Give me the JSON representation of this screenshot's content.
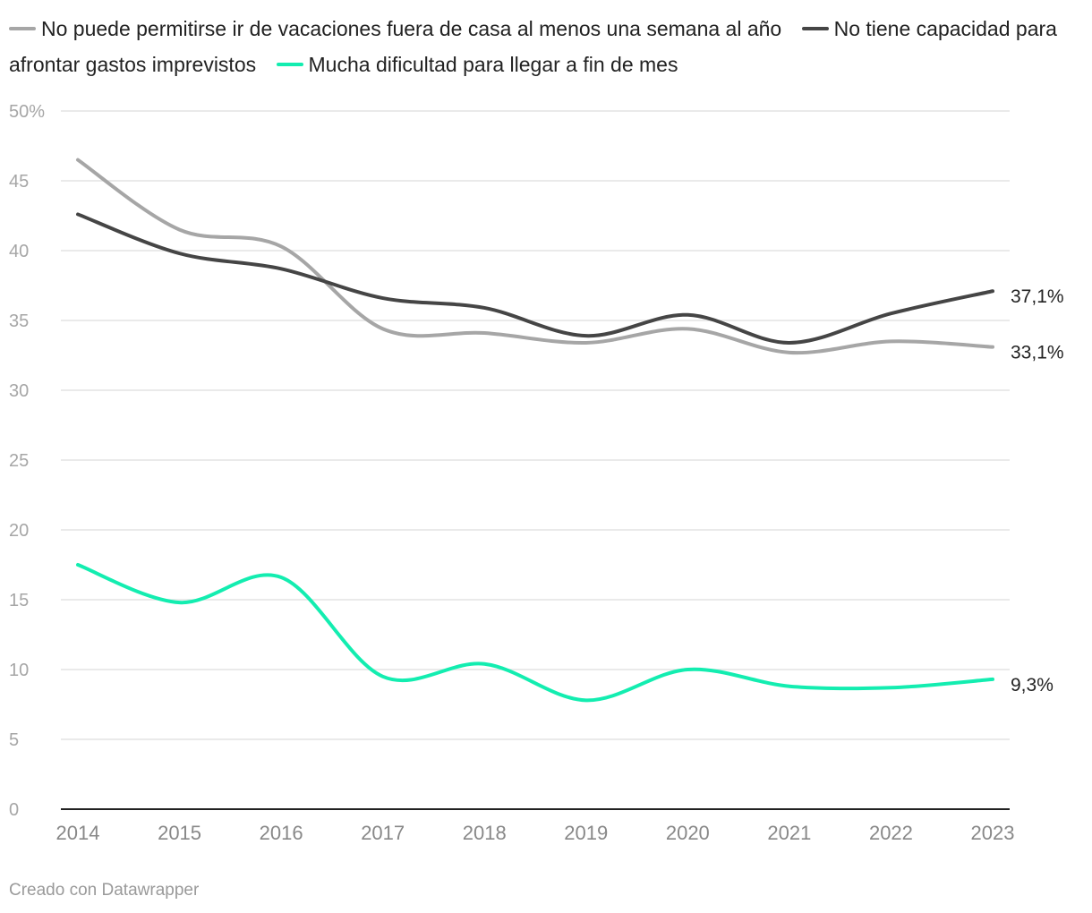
{
  "chart_data": {
    "type": "line",
    "x": [
      "2014",
      "2015",
      "2016",
      "2017",
      "2018",
      "2019",
      "2020",
      "2021",
      "2022",
      "2023"
    ],
    "series": [
      {
        "name": "No puede permitirse ir de vacaciones fuera de casa al menos una semana al año",
        "color": "#a6a6a6",
        "values": [
          46.5,
          41.5,
          40.3,
          34.4,
          34.1,
          33.4,
          34.4,
          32.7,
          33.5,
          33.1
        ],
        "end_label": "33,1%"
      },
      {
        "name": "No tiene capacidad para afrontar gastos imprevistos",
        "color": "#454545",
        "values": [
          42.6,
          39.8,
          38.7,
          36.6,
          35.9,
          33.9,
          35.4,
          33.4,
          35.5,
          37.1
        ],
        "end_label": "37,1%"
      },
      {
        "name": "Mucha dificultad para llegar a fin de mes",
        "color": "#13edb0",
        "values": [
          17.5,
          14.8,
          16.6,
          9.5,
          10.4,
          7.8,
          10.0,
          8.8,
          8.7,
          9.3
        ],
        "end_label": "9,3%"
      }
    ],
    "y_ticks": [
      "50%",
      "45",
      "40",
      "35",
      "30",
      "25",
      "20",
      "15",
      "10",
      "5",
      "0"
    ],
    "ylim": [
      0,
      50
    ],
    "grid": true,
    "legend_position": "top"
  },
  "footer": "Creado con Datawrapper"
}
